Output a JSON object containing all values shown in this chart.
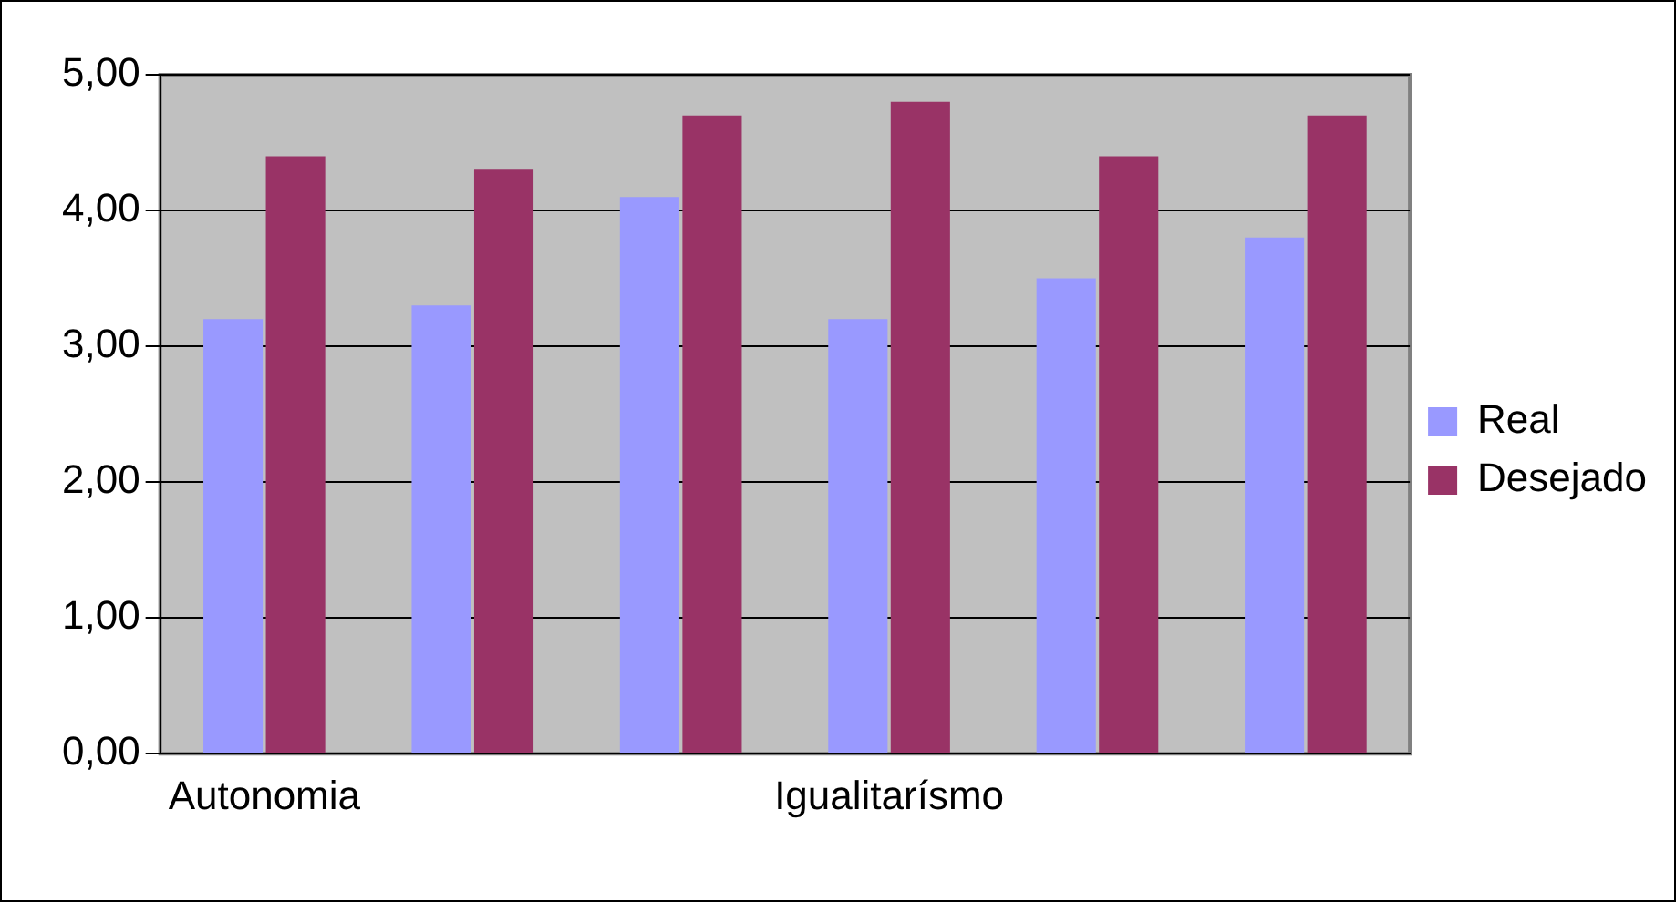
{
  "chart_data": {
    "type": "bar",
    "categories": [
      "Autonomia",
      null,
      null,
      "Igualitarísmo",
      null,
      null
    ],
    "series": [
      {
        "name": "Real",
        "color": "#9999ff",
        "values": [
          3.2,
          3.3,
          4.1,
          3.2,
          3.5,
          3.8
        ]
      },
      {
        "name": "Desejado",
        "color": "#993366",
        "values": [
          4.4,
          4.3,
          4.7,
          4.8,
          4.4,
          4.7
        ]
      }
    ],
    "ylim": [
      0,
      5
    ],
    "yticks": [
      {
        "value": 0,
        "label": "0,00"
      },
      {
        "value": 1,
        "label": "1,00"
      },
      {
        "value": 2,
        "label": "2,00"
      },
      {
        "value": 3,
        "label": "3,00"
      },
      {
        "value": 4,
        "label": "4,00"
      },
      {
        "value": 5,
        "label": "5,00"
      }
    ],
    "grid": "y",
    "legend": "right"
  }
}
